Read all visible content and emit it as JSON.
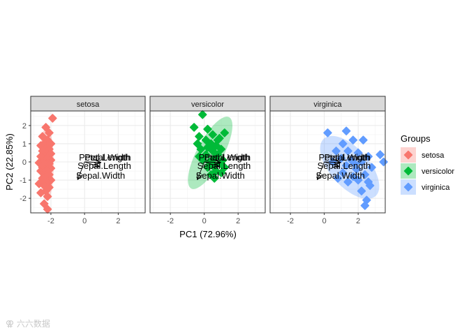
{
  "chart_data": {
    "type": "scatter",
    "xlabel": "PC1 (72.96%)",
    "ylabel": "PC2 (22.85%)",
    "xlim": [
      -3.2,
      3.6
    ],
    "ylim": [
      -2.8,
      2.8
    ],
    "xticks": [
      -2,
      0,
      2
    ],
    "yticks": [
      -2,
      -1,
      0,
      1,
      2
    ],
    "grid": true,
    "legend": {
      "title": "Groups",
      "position": "right"
    },
    "colors": {
      "setosa": "#F8766D",
      "versicolor": "#00BA38",
      "virginica": "#619CFF"
    },
    "facets": [
      "setosa",
      "versicolor",
      "virginica"
    ],
    "series": [
      {
        "name": "setosa",
        "ellipse": {
          "cx": -2.25,
          "cy": -0.1,
          "rx": 0.4,
          "ry": 2.1,
          "angle": 0
        },
        "points": [
          [
            -1.9,
            2.4
          ],
          [
            -2.3,
            1.9
          ],
          [
            -2.1,
            1.6
          ],
          [
            -2.5,
            1.4
          ],
          [
            -2.2,
            1.2
          ],
          [
            -2.4,
            1.0
          ],
          [
            -2.0,
            1.0
          ],
          [
            -2.6,
            0.9
          ],
          [
            -2.3,
            0.8
          ],
          [
            -2.1,
            0.7
          ],
          [
            -2.5,
            0.6
          ],
          [
            -2.2,
            0.5
          ],
          [
            -2.0,
            0.45
          ],
          [
            -2.4,
            0.35
          ],
          [
            -2.6,
            0.3
          ],
          [
            -2.2,
            0.2
          ],
          [
            -2.0,
            0.1
          ],
          [
            -2.4,
            0.0
          ],
          [
            -2.7,
            -0.05
          ],
          [
            -2.1,
            -0.1
          ],
          [
            -2.3,
            -0.2
          ],
          [
            -2.5,
            -0.3
          ],
          [
            -2.0,
            -0.35
          ],
          [
            -2.2,
            -0.45
          ],
          [
            -2.6,
            -0.5
          ],
          [
            -2.4,
            -0.6
          ],
          [
            -2.1,
            -0.7
          ],
          [
            -2.3,
            -0.8
          ],
          [
            -2.5,
            -0.9
          ],
          [
            -2.0,
            -1.0
          ],
          [
            -2.2,
            -1.1
          ],
          [
            -2.7,
            -1.2
          ],
          [
            -2.4,
            -1.3
          ],
          [
            -2.1,
            -1.4
          ],
          [
            -2.3,
            -1.6
          ],
          [
            -2.6,
            -1.7
          ],
          [
            -2.2,
            -1.9
          ],
          [
            -2.4,
            -2.3
          ],
          [
            -2.2,
            -2.6
          ],
          [
            -2.5,
            -0.15
          ]
        ]
      },
      {
        "name": "versicolor",
        "ellipse": {
          "cx": 0.35,
          "cy": 0.5,
          "rx": 2.3,
          "ry": 0.75,
          "angle": 62
        },
        "points": [
          [
            -0.1,
            2.6
          ],
          [
            -0.6,
            1.9
          ],
          [
            0.2,
            1.8
          ],
          [
            0.5,
            1.5
          ],
          [
            1.2,
            1.6
          ],
          [
            0.9,
            1.3
          ],
          [
            -0.3,
            1.4
          ],
          [
            0.1,
            1.2
          ],
          [
            0.4,
            1.0
          ],
          [
            -0.4,
            1.0
          ],
          [
            0.7,
            0.9
          ],
          [
            0.2,
            0.8
          ],
          [
            1.0,
            0.7
          ],
          [
            -0.2,
            0.7
          ],
          [
            0.5,
            0.6
          ],
          [
            0.8,
            0.4
          ],
          [
            0.1,
            0.4
          ],
          [
            -0.3,
            0.3
          ],
          [
            0.6,
            0.2
          ],
          [
            1.1,
            0.1
          ],
          [
            0.3,
            0.0
          ],
          [
            -0.1,
            0.1
          ],
          [
            0.9,
            -0.1
          ],
          [
            0.5,
            -0.2
          ],
          [
            1.2,
            -0.3
          ],
          [
            0.2,
            -0.3
          ],
          [
            0.7,
            -0.5
          ],
          [
            1.0,
            -0.6
          ],
          [
            0.4,
            -0.7
          ],
          [
            0.6,
            -0.9
          ],
          [
            0.3,
            0.9
          ],
          [
            0.8,
            1.2
          ]
        ]
      },
      {
        "name": "virginica",
        "ellipse": {
          "cx": 1.5,
          "cy": -0.3,
          "rx": 2.2,
          "ry": 1.1,
          "angle": -48
        },
        "points": [
          [
            0.2,
            1.6
          ],
          [
            1.3,
            1.7
          ],
          [
            1.7,
            1.2
          ],
          [
            2.3,
            1.2
          ],
          [
            1.1,
            1.0
          ],
          [
            3.3,
            0.4
          ],
          [
            0.7,
            0.6
          ],
          [
            1.4,
            0.6
          ],
          [
            2.0,
            0.5
          ],
          [
            2.6,
            0.3
          ],
          [
            3.5,
            0.0
          ],
          [
            1.0,
            0.2
          ],
          [
            1.6,
            0.1
          ],
          [
            2.2,
            0.0
          ],
          [
            0.5,
            0.0
          ],
          [
            1.3,
            -0.2
          ],
          [
            2.8,
            -0.3
          ],
          [
            1.9,
            -0.4
          ],
          [
            1.1,
            -0.6
          ],
          [
            2.4,
            -0.7
          ],
          [
            1.7,
            -0.8
          ],
          [
            2.0,
            -1.0
          ],
          [
            2.6,
            -1.1
          ],
          [
            1.4,
            -1.1
          ],
          [
            2.2,
            -1.6
          ],
          [
            2.5,
            -2.1
          ],
          [
            2.4,
            -2.4
          ],
          [
            2.7,
            -1.3
          ],
          [
            1.8,
            -0.1
          ],
          [
            0.8,
            -0.9
          ]
        ]
      }
    ],
    "loadings": [
      {
        "name": "Petal.Width",
        "x": 0.9,
        "y": -0.02
      },
      {
        "name": "Petal.Length",
        "x": 0.95,
        "y": -0.03
      },
      {
        "name": "Sepal.Length",
        "x": 0.85,
        "y": -0.25
      },
      {
        "name": "Sepal.Width",
        "x": -0.4,
        "y": -0.95
      }
    ]
  },
  "watermark": "⚢ 六六数据"
}
